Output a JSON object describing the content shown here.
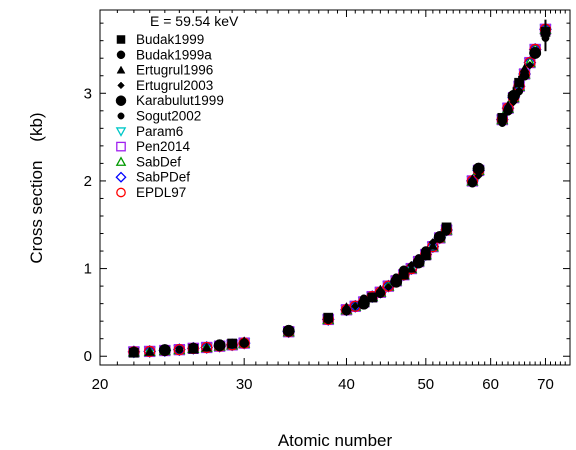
{
  "chart_data": {
    "type": "scatter",
    "annotation": "E = 59.54 keV",
    "xlabel": "Atomic number",
    "ylabel": "Cross section    (kb)",
    "xscale": "log",
    "xlim": [
      20,
      75
    ],
    "ylim": [
      -0.1,
      3.95
    ],
    "xticks": [
      20,
      30,
      40,
      50,
      60,
      70
    ],
    "xtick_labels": [
      "20",
      "30",
      "40",
      "50",
      "60",
      "70"
    ],
    "yticks": [
      0,
      1,
      2,
      3
    ],
    "ytick_labels": [
      "0",
      "1",
      "2",
      "3"
    ],
    "grid": false,
    "legend_position": "top-left",
    "legend": [
      {
        "name": "Budak1999",
        "marker": "square-filled",
        "color": "#000000"
      },
      {
        "name": "Budak1999a",
        "marker": "circle-filled",
        "color": "#000000"
      },
      {
        "name": "Ertugrul1996",
        "marker": "triangle-filled",
        "color": "#000000"
      },
      {
        "name": "Ertugrul2003",
        "marker": "diamond-filled",
        "color": "#000000"
      },
      {
        "name": "Karabulut1999",
        "marker": "big-circle-filled",
        "color": "#000000"
      },
      {
        "name": "Sogut2002",
        "marker": "small-circle-filled",
        "color": "#000000"
      },
      {
        "name": "Param6",
        "marker": "triangle-down-open",
        "color": "#00c8c8"
      },
      {
        "name": "Pen2014",
        "marker": "square-open",
        "color": "#a020f0"
      },
      {
        "name": "SabDef",
        "marker": "triangle-open",
        "color": "#009900"
      },
      {
        "name": "SabPDef",
        "marker": "diamond-open",
        "color": "#0000ff"
      },
      {
        "name": "EPDL97",
        "marker": "circle-open",
        "color": "#ff0000"
      }
    ],
    "points": [
      {
        "z": 22,
        "y": 0.05
      },
      {
        "z": 23,
        "y": 0.055
      },
      {
        "z": 24,
        "y": 0.065
      },
      {
        "z": 25,
        "y": 0.075
      },
      {
        "z": 26,
        "y": 0.09
      },
      {
        "z": 27,
        "y": 0.1
      },
      {
        "z": 28,
        "y": 0.115
      },
      {
        "z": 29,
        "y": 0.13
      },
      {
        "z": 30,
        "y": 0.15
      },
      {
        "z": 34,
        "y": 0.28
      },
      {
        "z": 38,
        "y": 0.42
      },
      {
        "z": 40,
        "y": 0.53
      },
      {
        "z": 41,
        "y": 0.57
      },
      {
        "z": 42,
        "y": 0.62
      },
      {
        "z": 43,
        "y": 0.68
      },
      {
        "z": 44,
        "y": 0.73
      },
      {
        "z": 45,
        "y": 0.8
      },
      {
        "z": 46,
        "y": 0.86
      },
      {
        "z": 47,
        "y": 0.93
      },
      {
        "z": 48,
        "y": 1.0
      },
      {
        "z": 49,
        "y": 1.08
      },
      {
        "z": 50,
        "y": 1.16
      },
      {
        "z": 51,
        "y": 1.25
      },
      {
        "z": 52,
        "y": 1.35
      },
      {
        "z": 53,
        "y": 1.44
      },
      {
        "z": 57,
        "y": 2.0
      },
      {
        "z": 58,
        "y": 2.12
      },
      {
        "z": 62,
        "y": 2.7
      },
      {
        "z": 63,
        "y": 2.83
      },
      {
        "z": 64,
        "y": 2.95
      },
      {
        "z": 65,
        "y": 3.08
      },
      {
        "z": 66,
        "y": 3.22
      },
      {
        "z": 67,
        "y": 3.35
      },
      {
        "z": 68,
        "y": 3.5
      },
      {
        "z": 70,
        "y": 3.73
      }
    ],
    "measurements": [
      {
        "z": 22,
        "y": 0.04
      },
      {
        "z": 22,
        "y": 0.055
      },
      {
        "z": 23,
        "y": 0.05
      },
      {
        "z": 24,
        "y": 0.06
      },
      {
        "z": 24,
        "y": 0.07
      },
      {
        "z": 25,
        "y": 0.075
      },
      {
        "z": 26,
        "y": 0.085
      },
      {
        "z": 26,
        "y": 0.1
      },
      {
        "z": 27,
        "y": 0.1
      },
      {
        "z": 28,
        "y": 0.11
      },
      {
        "z": 28,
        "y": 0.125
      },
      {
        "z": 29,
        "y": 0.13
      },
      {
        "z": 29,
        "y": 0.145
      },
      {
        "z": 30,
        "y": 0.15
      },
      {
        "z": 30,
        "y": 0.17
      },
      {
        "z": 34,
        "y": 0.27
      },
      {
        "z": 34,
        "y": 0.29
      },
      {
        "z": 38,
        "y": 0.41
      },
      {
        "z": 38,
        "y": 0.44
      },
      {
        "z": 40,
        "y": 0.52
      },
      {
        "z": 40,
        "y": 0.56
      },
      {
        "z": 41,
        "y": 0.57
      },
      {
        "z": 42,
        "y": 0.6
      },
      {
        "z": 42,
        "y": 0.66
      },
      {
        "z": 43,
        "y": 0.67
      },
      {
        "z": 44,
        "y": 0.72
      },
      {
        "z": 44,
        "y": 0.76
      },
      {
        "z": 45,
        "y": 0.79
      },
      {
        "z": 46,
        "y": 0.85
      },
      {
        "z": 46,
        "y": 0.9
      },
      {
        "z": 47,
        "y": 0.93
      },
      {
        "z": 47,
        "y": 0.98
      },
      {
        "z": 48,
        "y": 1.0
      },
      {
        "z": 48,
        "y": 1.04
      },
      {
        "z": 49,
        "y": 1.07
      },
      {
        "z": 49,
        "y": 1.12
      },
      {
        "z": 50,
        "y": 1.15
      },
      {
        "z": 50,
        "y": 1.2
      },
      {
        "z": 51,
        "y": 1.26
      },
      {
        "z": 51,
        "y": 1.3
      },
      {
        "z": 52,
        "y": 1.36
      },
      {
        "z": 53,
        "y": 1.42
      },
      {
        "z": 53,
        "y": 1.47
      },
      {
        "z": 57,
        "y": 1.98
      },
      {
        "z": 57,
        "y": 2.02
      },
      {
        "z": 58,
        "y": 2.06
      },
      {
        "z": 58,
        "y": 2.14
      },
      {
        "z": 62,
        "y": 2.66
      },
      {
        "z": 62,
        "y": 2.72
      },
      {
        "z": 63,
        "y": 2.8
      },
      {
        "z": 63,
        "y": 2.86
      },
      {
        "z": 64,
        "y": 2.9
      },
      {
        "z": 64,
        "y": 2.97
      },
      {
        "z": 65,
        "y": 3.02
      },
      {
        "z": 65,
        "y": 3.12
      },
      {
        "z": 66,
        "y": 3.2
      },
      {
        "z": 66,
        "y": 3.28
      },
      {
        "z": 67,
        "y": 3.32
      },
      {
        "z": 68,
        "y": 3.46
      },
      {
        "z": 70,
        "y": 3.63
      },
      {
        "z": 70,
        "y": 3.7
      }
    ],
    "errorbars": [
      {
        "z": 64,
        "y": 2.97,
        "err": 0.1
      },
      {
        "z": 65,
        "y": 3.08,
        "err": 0.12
      },
      {
        "z": 70,
        "y": 3.66,
        "err": 0.18
      }
    ]
  }
}
